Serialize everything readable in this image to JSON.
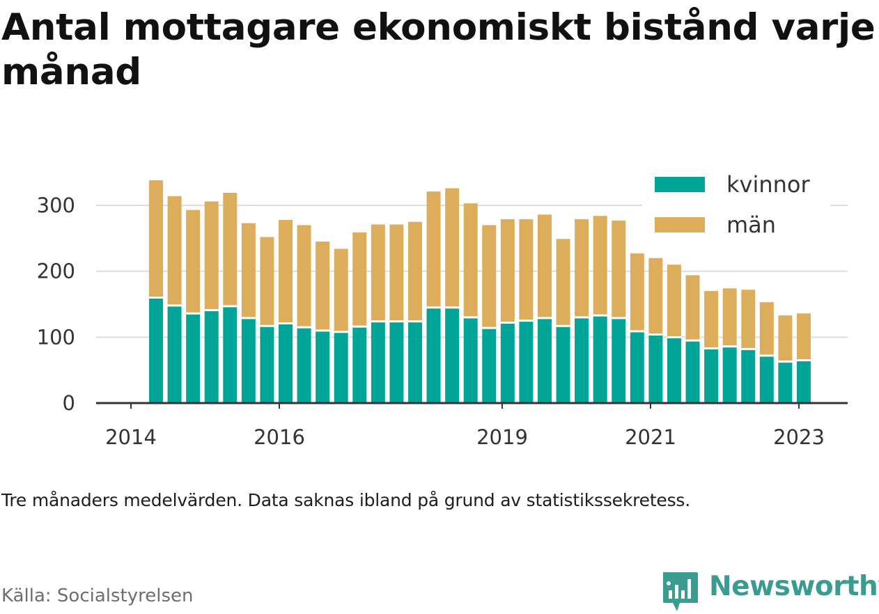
{
  "title": "Antal mottagare ekonomiskt bistånd varje månad",
  "note": "Tre månaders medelvärden. Data saknas ibland på grund av statistikssekretess.",
  "source": "Källa: Socialstyrelsen",
  "brand": "Newsworthy",
  "colors": {
    "kvinnor": "#00a598",
    "man": "#dcae5c",
    "grid": "#dddddd",
    "axis": "#333333"
  },
  "chart_data": {
    "type": "bar",
    "stacked": true,
    "title": "Antal mottagare ekonomiskt bistånd varje månad",
    "ylim": [
      0,
      350
    ],
    "yticks": [
      0,
      100,
      200,
      300
    ],
    "xtick_labels": [
      "2014",
      "2016",
      "2019",
      "2021",
      "2023"
    ],
    "grid": true,
    "legend_position": "top-right",
    "series": [
      {
        "name": "kvinnor",
        "values": [
          160,
          148,
          136,
          141,
          147,
          129,
          117,
          121,
          115,
          110,
          108,
          116,
          124,
          124,
          124,
          145,
          145,
          130,
          114,
          122,
          125,
          129,
          117,
          130,
          133,
          129,
          109,
          104,
          100,
          95,
          83,
          86,
          82,
          72,
          63,
          65
        ]
      },
      {
        "name": "män",
        "values": [
          178,
          166,
          157,
          165,
          172,
          144,
          135,
          157,
          155,
          135,
          126,
          143,
          147,
          147,
          151,
          176,
          181,
          173,
          156,
          157,
          154,
          157,
          132,
          149,
          151,
          148,
          118,
          116,
          110,
          99,
          87,
          88,
          90,
          81,
          70,
          71
        ]
      }
    ]
  }
}
